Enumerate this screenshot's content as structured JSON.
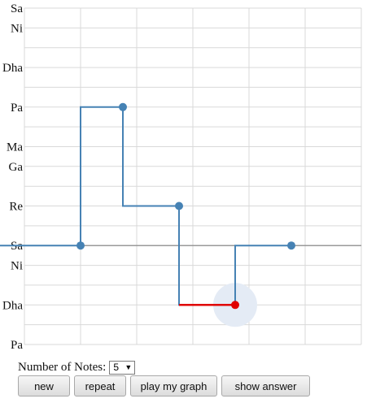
{
  "y_axis": {
    "labels": [
      "Sa",
      "Ni",
      "Dha",
      "Pa",
      "Ma",
      "Ga",
      "Re",
      "Sa",
      "Ni",
      "Dha",
      "Pa"
    ]
  },
  "graph": {
    "note_points": [
      "Sa",
      "Pa",
      "Re",
      "Dha",
      "Sa"
    ],
    "active_note_index": 3,
    "colors": {
      "line": "#4682b4",
      "active": "#e00000",
      "grid": "#d9d9d9",
      "baseline": "#999999",
      "highlight": "#e4ebf5"
    }
  },
  "controls": {
    "notes_label": "Number of Notes:",
    "notes_value": "5",
    "new_label": "new",
    "repeat_label": "repeat",
    "play_label": "play my graph",
    "answer_label": "show answer"
  }
}
